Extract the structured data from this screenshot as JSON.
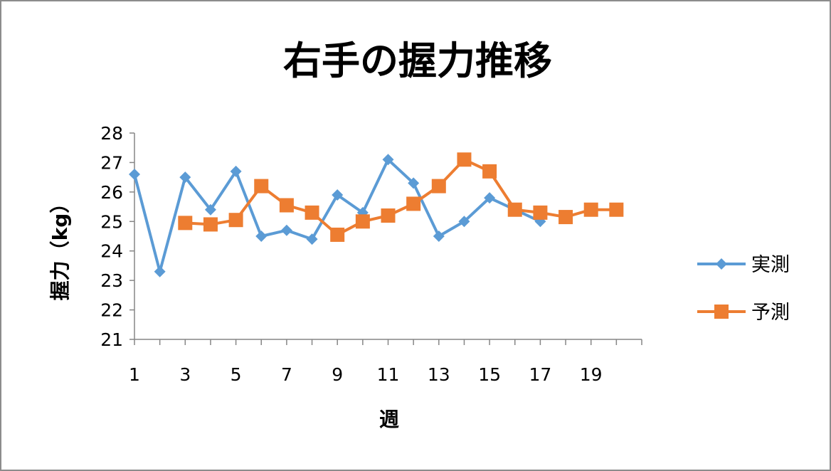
{
  "chart_data": {
    "type": "line",
    "title": "右手の握力推移",
    "xlabel": "週",
    "ylabel": "握力（kg）",
    "ylim": [
      21,
      28
    ],
    "y_ticks": [
      "21",
      "22",
      "23",
      "24",
      "25",
      "26",
      "27",
      "28"
    ],
    "x_tick_labels": [
      "1",
      "3",
      "5",
      "7",
      "9",
      "11",
      "13",
      "15",
      "17",
      "19"
    ],
    "x_range": [
      1,
      20
    ],
    "grid": false,
    "legend_position": "right",
    "series": [
      {
        "name": "実測",
        "color": "#5b9bd5",
        "marker": "diamond",
        "x": [
          1,
          2,
          3,
          4,
          5,
          6,
          7,
          8,
          9,
          10,
          11,
          12,
          13,
          14,
          15,
          16,
          17
        ],
        "values": [
          26.6,
          23.3,
          26.5,
          25.4,
          26.7,
          24.5,
          24.7,
          24.4,
          25.9,
          25.3,
          27.1,
          26.3,
          24.5,
          25.0,
          25.8,
          25.4,
          25.0
        ]
      },
      {
        "name": "予測",
        "color": "#ed7d31",
        "marker": "square",
        "x": [
          3,
          4,
          5,
          6,
          7,
          8,
          9,
          10,
          11,
          12,
          13,
          14,
          15,
          16,
          17,
          18,
          19,
          20
        ],
        "values": [
          24.95,
          24.9,
          25.05,
          26.2,
          25.55,
          25.3,
          24.55,
          25.0,
          25.2,
          25.6,
          26.2,
          27.1,
          26.7,
          25.4,
          25.3,
          25.15,
          25.4,
          25.4
        ]
      }
    ]
  }
}
